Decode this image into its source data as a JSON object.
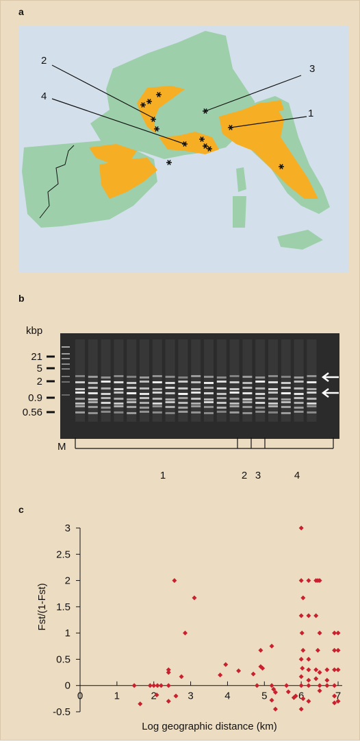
{
  "panel_a": {
    "label": "a",
    "map_labels": [
      "1",
      "2",
      "3",
      "4"
    ]
  },
  "panel_b": {
    "label": "b",
    "unit": "kbp",
    "size_markers": [
      "21",
      "5",
      "2",
      "0.9",
      "0.56"
    ],
    "lane_labels": [
      "M",
      "1",
      "2",
      "3",
      "4"
    ]
  },
  "chart_data": {
    "type": "scatter",
    "panel_label": "c",
    "x_label": "Log geographic distance (km)",
    "y_label": "Fst/(1-Fst)",
    "xlim": [
      0,
      7
    ],
    "ylim": [
      -0.5,
      3
    ],
    "xticks": [
      0,
      1,
      2,
      3,
      4,
      5,
      6,
      7
    ],
    "yticks": [
      -0.5,
      0,
      0.5,
      1,
      1.5,
      2,
      2.5,
      3
    ],
    "color": "#c8202c",
    "x": [
      1.63,
      1.47,
      1.9,
      2.0,
      2.1,
      2.2,
      2.08,
      2.4,
      2.4,
      2.4,
      2.4,
      2.56,
      2.6,
      2.75,
      2.85,
      3.1,
      3.8,
      3.95,
      4.3,
      4.7,
      4.8,
      4.9,
      4.95,
      4.9,
      5.2,
      5.2,
      5.25,
      5.3,
      5.2,
      5.3,
      5.6,
      5.65,
      5.8,
      5.85,
      6.0,
      6.0,
      6.0,
      6.05,
      6.0,
      6.02,
      6.05,
      6.0,
      6.03,
      6.0,
      6.05,
      6.0,
      6.2,
      6.2,
      6.2,
      6.2,
      6.2,
      6.2,
      6.2,
      6.4,
      6.45,
      6.4,
      6.4,
      6.45,
      6.4,
      6.5,
      6.5,
      6.5,
      6.5,
      6.5,
      6.7,
      6.7,
      6.7,
      6.9,
      6.9,
      6.9,
      6.9,
      6.9,
      6.9,
      7.0,
      7.0,
      7.0,
      7.0
    ],
    "y": [
      -0.35,
      0,
      0,
      0,
      0,
      0,
      -0.18,
      0,
      -0.3,
      0.25,
      0.3,
      2,
      -0.2,
      0.17,
      1.0,
      1.67,
      0.2,
      0.4,
      0.28,
      0.22,
      0,
      0.36,
      0.33,
      0.67,
      0.75,
      0,
      -0.07,
      -0.13,
      -0.28,
      -0.45,
      0,
      -0.12,
      -0.23,
      -0.2,
      0,
      3,
      2,
      1.67,
      1.33,
      1.0,
      0.67,
      0.5,
      0.33,
      0.17,
      -0.25,
      -0.45,
      2,
      1.33,
      0.5,
      0.3,
      0.1,
      0,
      -0.3,
      2,
      2,
      1.33,
      0.3,
      0.67,
      0.13,
      2,
      1.0,
      0.25,
      0,
      -0.1,
      0.3,
      0.1,
      0,
      1.0,
      0.67,
      0.3,
      0,
      -0.2,
      -0.33,
      1.0,
      0.67,
      0.3,
      -0.3
    ]
  }
}
